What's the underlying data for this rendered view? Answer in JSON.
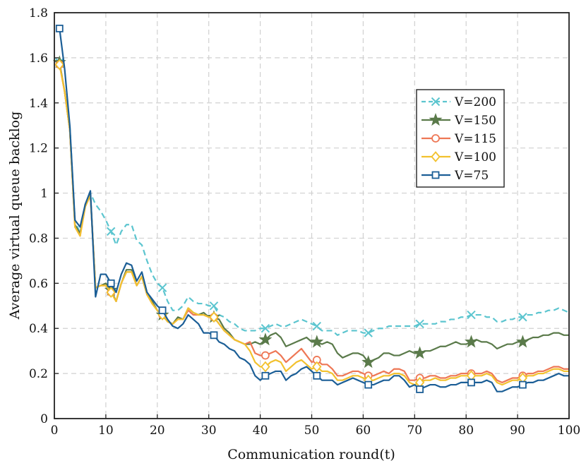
{
  "chart_data": {
    "type": "line",
    "title": "",
    "xlabel": "Communication round(t)",
    "ylabel": "Average virtual queue backlog",
    "xlim": [
      0,
      100
    ],
    "ylim": [
      0,
      1.8
    ],
    "xticks": [
      0,
      10,
      20,
      30,
      40,
      50,
      60,
      70,
      80,
      90,
      100
    ],
    "yticks": [
      0,
      0.2,
      0.4,
      0.6,
      0.8,
      1,
      1.2,
      1.4,
      1.6,
      1.8
    ],
    "ytick_labels": [
      "0",
      "0.2",
      "0.4",
      "0.6",
      "0.8",
      "1",
      "1.2",
      "1.4",
      "1.6",
      "1.8"
    ],
    "grid": true,
    "legend_position": "right-upper",
    "series": [
      {
        "name": "V=200",
        "color": "#5cc5cf",
        "dash": "dashed",
        "marker": "x",
        "marker_x": [
          1,
          11,
          21,
          31,
          41,
          51,
          61,
          71,
          81,
          91
        ],
        "x": [
          1,
          2,
          3,
          4,
          5,
          6,
          7,
          8,
          9,
          10,
          11,
          12,
          13,
          14,
          15,
          16,
          17,
          18,
          19,
          20,
          21,
          22,
          23,
          24,
          25,
          26,
          27,
          28,
          29,
          30,
          31,
          32,
          33,
          34,
          35,
          36,
          37,
          38,
          39,
          40,
          41,
          42,
          43,
          44,
          45,
          46,
          47,
          48,
          49,
          50,
          51,
          52,
          53,
          54,
          55,
          56,
          57,
          58,
          59,
          60,
          61,
          62,
          63,
          64,
          65,
          66,
          67,
          68,
          69,
          70,
          71,
          72,
          73,
          74,
          75,
          76,
          77,
          78,
          79,
          80,
          81,
          82,
          83,
          84,
          85,
          86,
          87,
          88,
          89,
          90,
          91,
          92,
          93,
          94,
          95,
          96,
          97,
          98,
          99,
          100
        ],
        "y": [
          1.58,
          1.45,
          1.3,
          0.88,
          0.82,
          0.95,
          1.0,
          0.95,
          0.92,
          0.88,
          0.83,
          0.77,
          0.83,
          0.86,
          0.86,
          0.79,
          0.77,
          0.7,
          0.64,
          0.6,
          0.58,
          0.52,
          0.48,
          0.48,
          0.5,
          0.54,
          0.52,
          0.51,
          0.51,
          0.5,
          0.5,
          0.46,
          0.45,
          0.43,
          0.42,
          0.4,
          0.39,
          0.39,
          0.39,
          0.4,
          0.4,
          0.41,
          0.42,
          0.41,
          0.41,
          0.42,
          0.43,
          0.44,
          0.43,
          0.42,
          0.41,
          0.39,
          0.39,
          0.39,
          0.37,
          0.38,
          0.39,
          0.39,
          0.39,
          0.38,
          0.38,
          0.39,
          0.4,
          0.4,
          0.41,
          0.41,
          0.41,
          0.41,
          0.41,
          0.41,
          0.42,
          0.42,
          0.42,
          0.42,
          0.43,
          0.43,
          0.44,
          0.44,
          0.45,
          0.45,
          0.46,
          0.46,
          0.46,
          0.45,
          0.45,
          0.43,
          0.43,
          0.44,
          0.44,
          0.45,
          0.45,
          0.46,
          0.46,
          0.47,
          0.47,
          0.48,
          0.48,
          0.49,
          0.48,
          0.47
        ]
      },
      {
        "name": "V=150",
        "color": "#5a7a4a",
        "dash": "solid",
        "marker": "star",
        "marker_x": [
          1,
          11,
          21,
          31,
          41,
          51,
          61,
          71,
          81,
          91
        ],
        "x": [
          1,
          2,
          3,
          4,
          5,
          6,
          7,
          8,
          9,
          10,
          11,
          12,
          13,
          14,
          15,
          16,
          17,
          18,
          19,
          20,
          21,
          22,
          23,
          24,
          25,
          26,
          27,
          28,
          29,
          30,
          31,
          32,
          33,
          34,
          35,
          36,
          37,
          38,
          39,
          40,
          41,
          42,
          43,
          44,
          45,
          46,
          47,
          48,
          49,
          50,
          51,
          52,
          53,
          54,
          55,
          56,
          57,
          58,
          59,
          60,
          61,
          62,
          63,
          64,
          65,
          66,
          67,
          68,
          69,
          70,
          71,
          72,
          73,
          74,
          75,
          76,
          77,
          78,
          79,
          80,
          81,
          82,
          83,
          84,
          85,
          86,
          87,
          88,
          89,
          90,
          91,
          92,
          93,
          94,
          95,
          96,
          97,
          98,
          99,
          100
        ],
        "y": [
          1.58,
          1.45,
          1.28,
          0.86,
          0.82,
          0.95,
          1.0,
          0.58,
          0.59,
          0.6,
          0.57,
          0.52,
          0.6,
          0.66,
          0.66,
          0.59,
          0.63,
          0.55,
          0.52,
          0.48,
          0.46,
          0.43,
          0.42,
          0.45,
          0.44,
          0.49,
          0.47,
          0.46,
          0.47,
          0.45,
          0.45,
          0.44,
          0.4,
          0.38,
          0.35,
          0.34,
          0.33,
          0.33,
          0.34,
          0.33,
          0.35,
          0.37,
          0.38,
          0.36,
          0.32,
          0.33,
          0.34,
          0.35,
          0.36,
          0.34,
          0.34,
          0.33,
          0.34,
          0.33,
          0.29,
          0.27,
          0.28,
          0.29,
          0.29,
          0.28,
          0.25,
          0.26,
          0.27,
          0.29,
          0.29,
          0.28,
          0.28,
          0.29,
          0.3,
          0.29,
          0.29,
          0.3,
          0.3,
          0.31,
          0.32,
          0.32,
          0.33,
          0.34,
          0.33,
          0.33,
          0.34,
          0.35,
          0.34,
          0.34,
          0.33,
          0.31,
          0.32,
          0.33,
          0.33,
          0.34,
          0.34,
          0.35,
          0.36,
          0.36,
          0.37,
          0.37,
          0.38,
          0.38,
          0.37,
          0.37
        ]
      },
      {
        "name": "V=115",
        "color": "#ee7755",
        "dash": "solid",
        "marker": "circle",
        "marker_x": [
          1,
          11,
          21,
          31,
          41,
          51,
          61,
          71,
          81,
          91
        ],
        "x": [
          1,
          2,
          3,
          4,
          5,
          6,
          7,
          8,
          9,
          10,
          11,
          12,
          13,
          14,
          15,
          16,
          17,
          18,
          19,
          20,
          21,
          22,
          23,
          24,
          25,
          26,
          27,
          28,
          29,
          30,
          31,
          32,
          33,
          34,
          35,
          36,
          37,
          38,
          39,
          40,
          41,
          42,
          43,
          44,
          45,
          46,
          47,
          48,
          49,
          50,
          51,
          52,
          53,
          54,
          55,
          56,
          57,
          58,
          59,
          60,
          61,
          62,
          63,
          64,
          65,
          66,
          67,
          68,
          69,
          70,
          71,
          72,
          73,
          74,
          75,
          76,
          77,
          78,
          79,
          80,
          81,
          82,
          83,
          84,
          85,
          86,
          87,
          88,
          89,
          90,
          91,
          92,
          93,
          94,
          95,
          96,
          97,
          98,
          99,
          100
        ],
        "y": [
          1.57,
          1.45,
          1.28,
          0.85,
          0.81,
          0.94,
          0.99,
          0.58,
          0.59,
          0.59,
          0.56,
          0.52,
          0.6,
          0.65,
          0.65,
          0.59,
          0.63,
          0.55,
          0.51,
          0.48,
          0.46,
          0.43,
          0.42,
          0.44,
          0.44,
          0.48,
          0.46,
          0.46,
          0.46,
          0.45,
          0.45,
          0.42,
          0.39,
          0.37,
          0.35,
          0.34,
          0.33,
          0.34,
          0.29,
          0.28,
          0.28,
          0.29,
          0.3,
          0.28,
          0.25,
          0.27,
          0.29,
          0.31,
          0.28,
          0.25,
          0.26,
          0.24,
          0.24,
          0.22,
          0.19,
          0.19,
          0.2,
          0.21,
          0.21,
          0.2,
          0.19,
          0.19,
          0.2,
          0.21,
          0.2,
          0.22,
          0.22,
          0.21,
          0.17,
          0.17,
          0.18,
          0.18,
          0.19,
          0.19,
          0.18,
          0.18,
          0.19,
          0.19,
          0.2,
          0.2,
          0.2,
          0.2,
          0.2,
          0.21,
          0.2,
          0.17,
          0.16,
          0.17,
          0.18,
          0.18,
          0.19,
          0.2,
          0.2,
          0.21,
          0.21,
          0.22,
          0.23,
          0.23,
          0.22,
          0.22
        ]
      },
      {
        "name": "V=100",
        "color": "#f2c12e",
        "dash": "solid",
        "marker": "diamond",
        "marker_x": [
          1,
          11,
          21,
          31,
          41,
          51,
          61,
          71,
          81,
          91
        ],
        "x": [
          1,
          2,
          3,
          4,
          5,
          6,
          7,
          8,
          9,
          10,
          11,
          12,
          13,
          14,
          15,
          16,
          17,
          18,
          19,
          20,
          21,
          22,
          23,
          24,
          25,
          26,
          27,
          28,
          29,
          30,
          31,
          32,
          33,
          34,
          35,
          36,
          37,
          38,
          39,
          40,
          41,
          42,
          43,
          44,
          45,
          46,
          47,
          48,
          49,
          50,
          51,
          52,
          53,
          54,
          55,
          56,
          57,
          58,
          59,
          60,
          61,
          62,
          63,
          64,
          65,
          66,
          67,
          68,
          69,
          70,
          71,
          72,
          73,
          74,
          75,
          76,
          77,
          78,
          79,
          80,
          81,
          82,
          83,
          84,
          85,
          86,
          87,
          88,
          89,
          90,
          91,
          92,
          93,
          94,
          95,
          96,
          97,
          98,
          99,
          100
        ],
        "y": [
          1.57,
          1.45,
          1.28,
          0.85,
          0.81,
          0.94,
          0.99,
          0.58,
          0.59,
          0.59,
          0.56,
          0.52,
          0.6,
          0.65,
          0.65,
          0.59,
          0.63,
          0.55,
          0.51,
          0.48,
          0.46,
          0.43,
          0.42,
          0.44,
          0.44,
          0.49,
          0.47,
          0.46,
          0.46,
          0.45,
          0.45,
          0.42,
          0.39,
          0.37,
          0.35,
          0.34,
          0.33,
          0.3,
          0.25,
          0.23,
          0.23,
          0.25,
          0.26,
          0.25,
          0.21,
          0.23,
          0.25,
          0.26,
          0.24,
          0.22,
          0.23,
          0.21,
          0.21,
          0.2,
          0.17,
          0.17,
          0.18,
          0.19,
          0.19,
          0.18,
          0.17,
          0.17,
          0.18,
          0.19,
          0.19,
          0.2,
          0.2,
          0.19,
          0.16,
          0.15,
          0.16,
          0.17,
          0.17,
          0.18,
          0.17,
          0.17,
          0.18,
          0.18,
          0.19,
          0.19,
          0.19,
          0.19,
          0.19,
          0.2,
          0.19,
          0.16,
          0.15,
          0.16,
          0.17,
          0.17,
          0.18,
          0.19,
          0.19,
          0.2,
          0.2,
          0.21,
          0.22,
          0.22,
          0.21,
          0.21
        ]
      },
      {
        "name": "V=75",
        "color": "#1b5e96",
        "dash": "solid",
        "marker": "square",
        "marker_x": [
          1,
          11,
          21,
          31,
          41,
          51,
          61,
          71,
          81,
          91
        ],
        "x": [
          1,
          2,
          3,
          4,
          5,
          6,
          7,
          8,
          9,
          10,
          11,
          12,
          13,
          14,
          15,
          16,
          17,
          18,
          19,
          20,
          21,
          22,
          23,
          24,
          25,
          26,
          27,
          28,
          29,
          30,
          31,
          32,
          33,
          34,
          35,
          36,
          37,
          38,
          39,
          40,
          41,
          42,
          43,
          44,
          45,
          46,
          47,
          48,
          49,
          50,
          51,
          52,
          53,
          54,
          55,
          56,
          57,
          58,
          59,
          60,
          61,
          62,
          63,
          64,
          65,
          66,
          67,
          68,
          69,
          70,
          71,
          72,
          73,
          74,
          75,
          76,
          77,
          78,
          79,
          80,
          81,
          82,
          83,
          84,
          85,
          86,
          87,
          88,
          89,
          90,
          91,
          92,
          93,
          94,
          95,
          96,
          97,
          98,
          99,
          100
        ],
        "y": [
          1.73,
          1.55,
          1.3,
          0.88,
          0.85,
          0.95,
          1.01,
          0.54,
          0.64,
          0.64,
          0.6,
          0.56,
          0.64,
          0.69,
          0.68,
          0.61,
          0.65,
          0.56,
          0.53,
          0.5,
          0.48,
          0.44,
          0.41,
          0.4,
          0.42,
          0.46,
          0.44,
          0.42,
          0.38,
          0.38,
          0.37,
          0.34,
          0.33,
          0.31,
          0.3,
          0.27,
          0.26,
          0.24,
          0.19,
          0.17,
          0.19,
          0.2,
          0.21,
          0.21,
          0.17,
          0.19,
          0.2,
          0.22,
          0.23,
          0.21,
          0.19,
          0.17,
          0.17,
          0.17,
          0.15,
          0.16,
          0.17,
          0.18,
          0.17,
          0.16,
          0.15,
          0.15,
          0.16,
          0.17,
          0.17,
          0.19,
          0.19,
          0.17,
          0.14,
          0.15,
          0.13,
          0.14,
          0.15,
          0.15,
          0.14,
          0.14,
          0.15,
          0.15,
          0.16,
          0.16,
          0.16,
          0.16,
          0.16,
          0.17,
          0.16,
          0.12,
          0.12,
          0.13,
          0.14,
          0.14,
          0.15,
          0.16,
          0.16,
          0.17,
          0.17,
          0.18,
          0.19,
          0.2,
          0.19,
          0.19
        ]
      }
    ]
  }
}
